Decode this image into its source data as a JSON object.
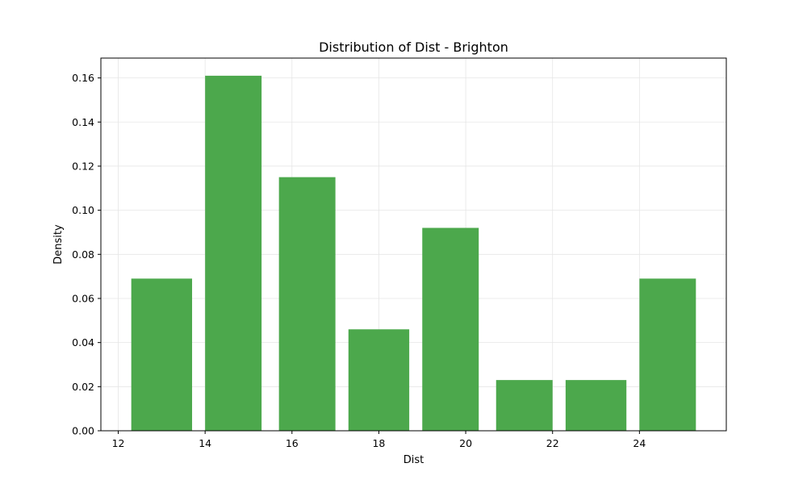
{
  "chart_data": {
    "type": "bar",
    "title": "Distribution of Dist - Brighton",
    "xlabel": "Dist",
    "ylabel": "Density",
    "bins": [
      {
        "start": 12.3,
        "end": 13.7,
        "value": 0.069
      },
      {
        "start": 14.0,
        "end": 15.3,
        "value": 0.161
      },
      {
        "start": 15.7,
        "end": 17.0,
        "value": 0.115
      },
      {
        "start": 17.3,
        "end": 18.7,
        "value": 0.046
      },
      {
        "start": 19.0,
        "end": 20.3,
        "value": 0.092
      },
      {
        "start": 20.7,
        "end": 22.0,
        "value": 0.023
      },
      {
        "start": 22.3,
        "end": 23.7,
        "value": 0.023
      },
      {
        "start": 24.0,
        "end": 25.3,
        "value": 0.069
      }
    ],
    "xlim": [
      11.6,
      26.0
    ],
    "ylim": [
      0,
      0.169
    ],
    "x_ticks": [
      12,
      14,
      16,
      18,
      20,
      22,
      24
    ],
    "y_ticks": [
      0.0,
      0.02,
      0.04,
      0.06,
      0.08,
      0.1,
      0.12,
      0.14,
      0.16
    ],
    "grid": true,
    "colors": {
      "bar": "#4ca84c",
      "grid": "#e6e6e6",
      "axis": "#000000"
    }
  }
}
